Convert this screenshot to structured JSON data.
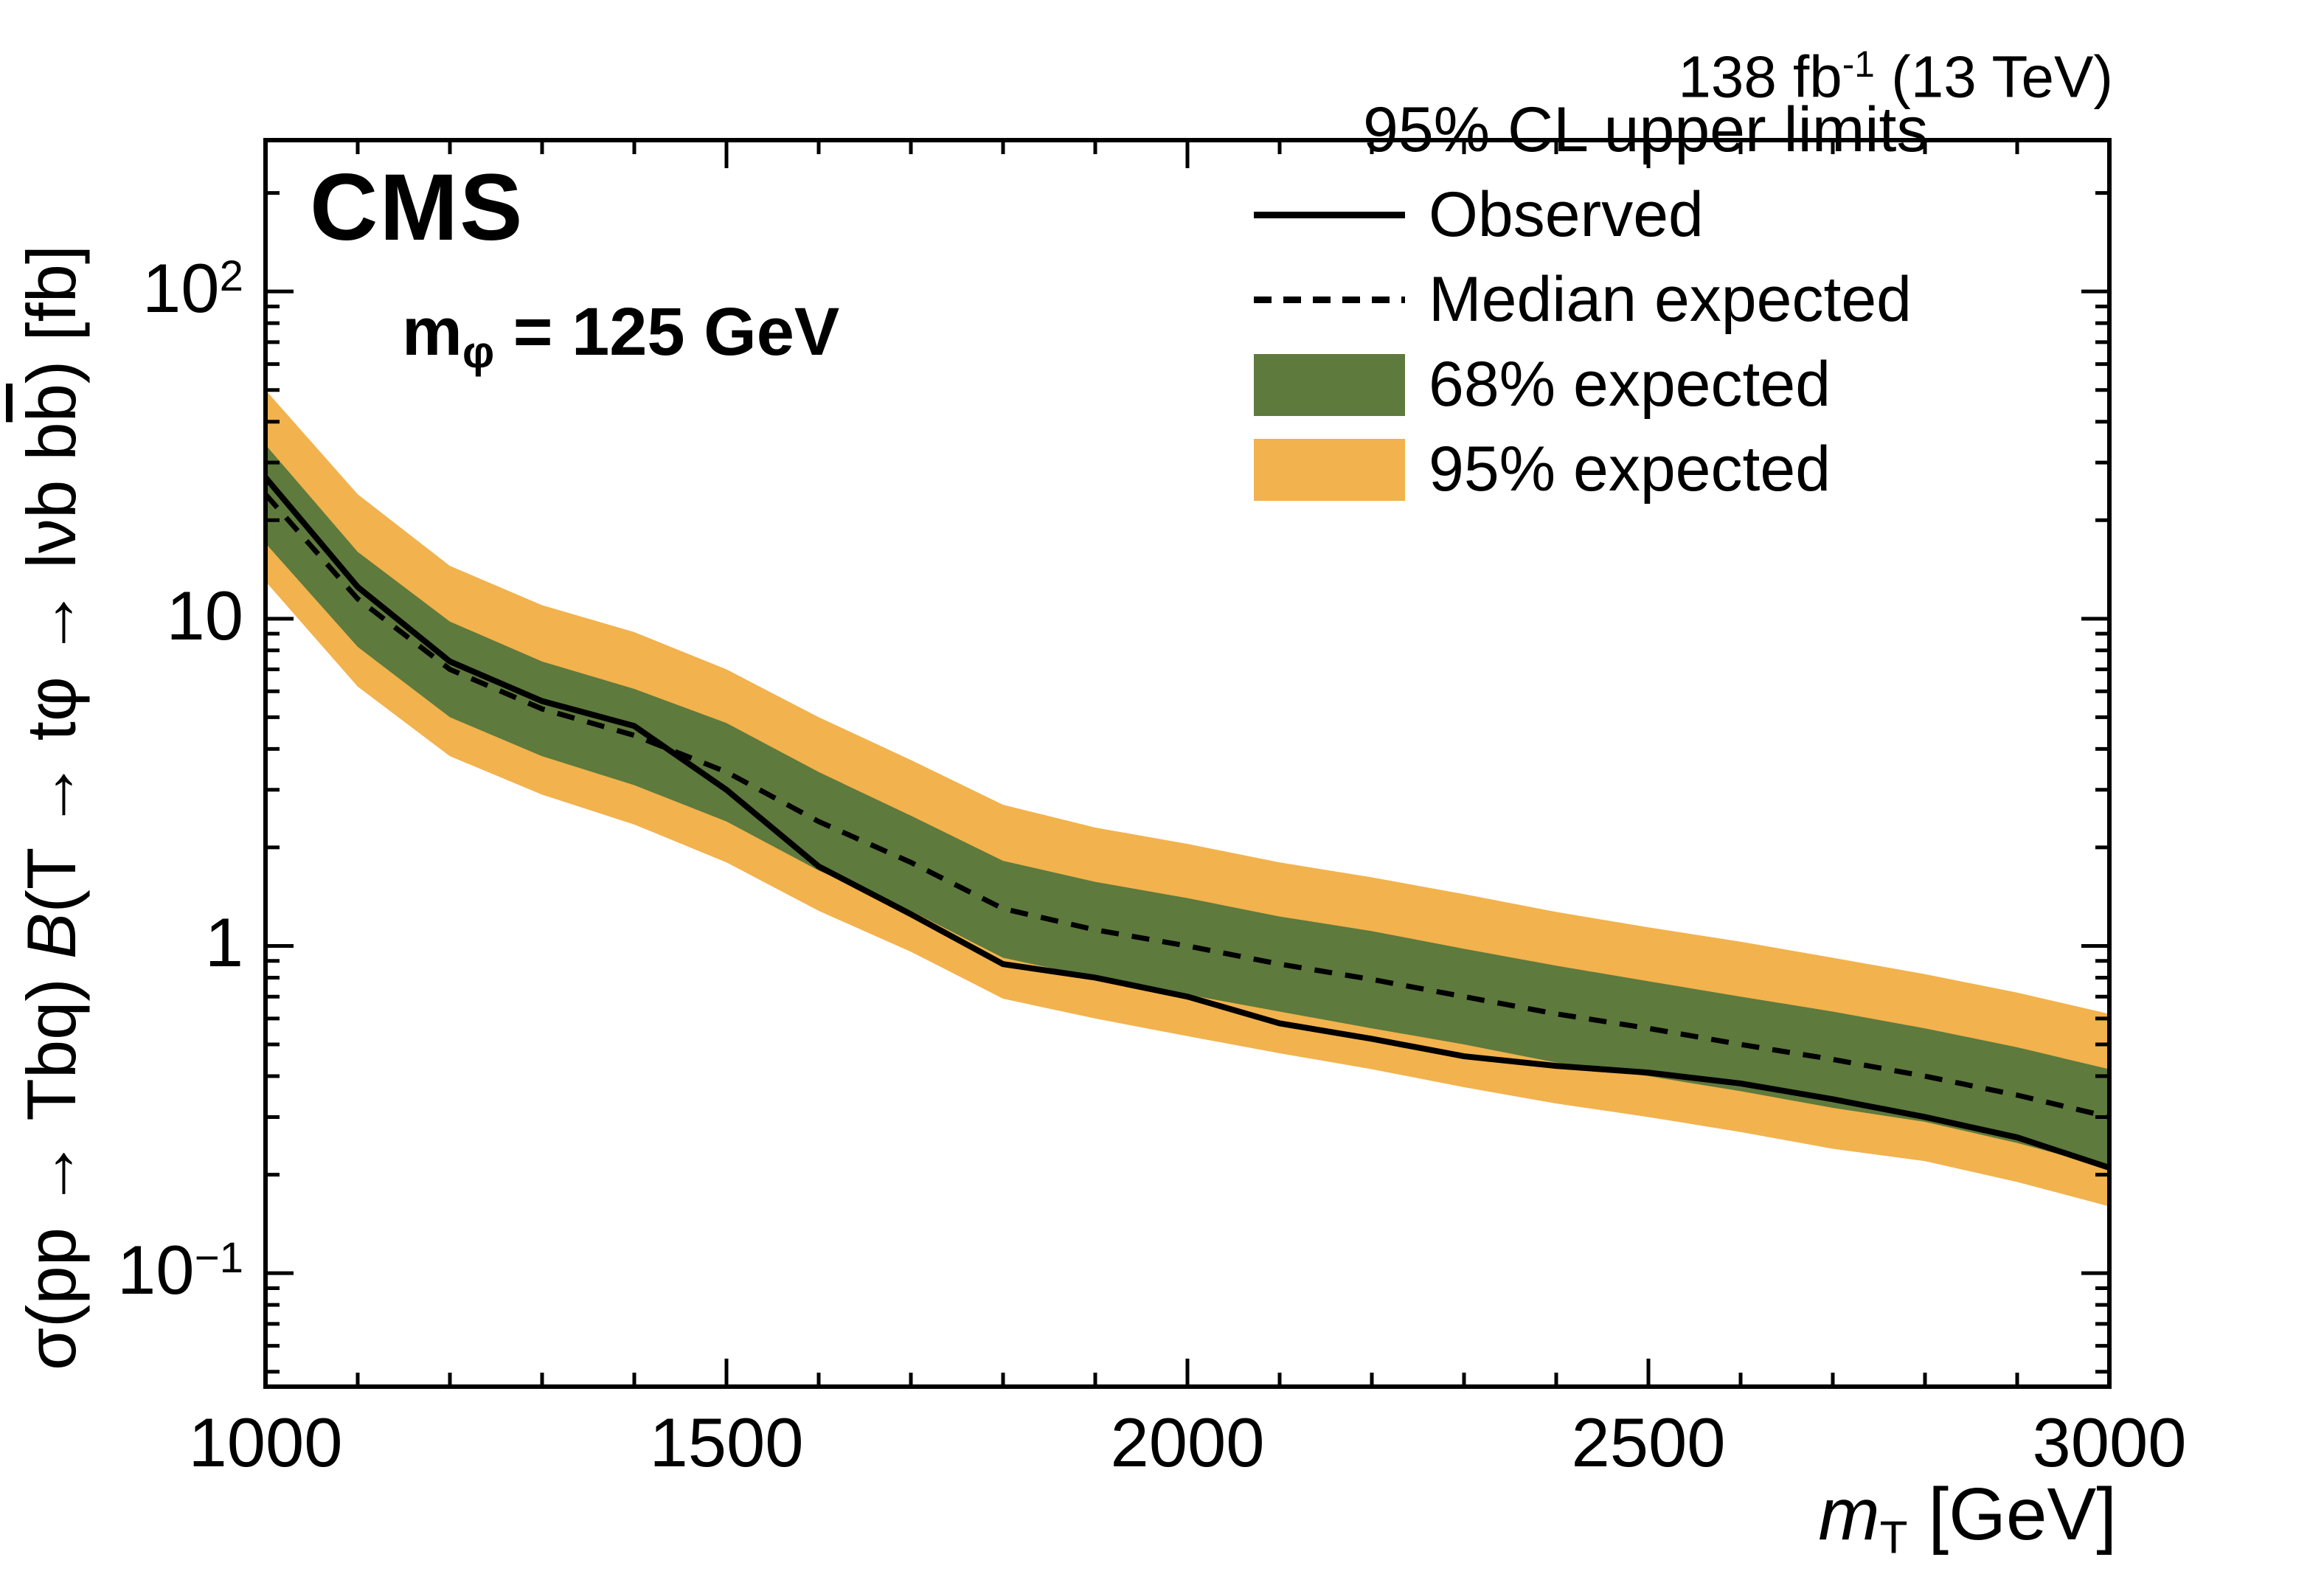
{
  "header": {
    "lumi": {
      "prefix": "138 fb",
      "sup": "-1",
      "suffix": " (13 TeV)"
    }
  },
  "plot": {
    "experiment": "CMS",
    "mass_label": {
      "main": "m",
      "sub": "φ",
      "rest": " = 125 GeV"
    }
  },
  "legend": {
    "title": "95% CL upper limits",
    "entries": [
      {
        "label": "Observed",
        "style": "solid-line"
      },
      {
        "label": "Median expected",
        "style": "dashed-line"
      },
      {
        "label": "68% expected",
        "style": "band-box"
      },
      {
        "label": "95% expected",
        "style": "band-box"
      }
    ]
  },
  "colors": {
    "band68": "#5e7a3d",
    "band95": "#f2b24d",
    "observed": "#000000",
    "median": "#000000",
    "frame": "#000000"
  },
  "axes": {
    "x": {
      "label_main": "m",
      "label_sub": "T",
      "label_units": " [GeV]",
      "min": 1000,
      "max": 3000,
      "ticks": [
        1000,
        1500,
        2000,
        2500,
        3000
      ],
      "minor_step": 100
    },
    "y": {
      "label_parts": {
        "p1": "σ(pp → Tbq) ",
        "B": "B",
        "p2": "(T → tφ → lνb b",
        "bbar": "b",
        "p3": ") [fb]"
      },
      "scale": "log",
      "min": 0.045,
      "max": 290,
      "tick_labels": [
        {
          "value": 100,
          "base": "10",
          "exp": "2"
        },
        {
          "value": 10,
          "base": "10",
          "exp": ""
        },
        {
          "value": 1,
          "base": "1",
          "exp": ""
        },
        {
          "value": 0.1,
          "base": "10",
          "exp": "−1"
        }
      ]
    }
  },
  "chart_data": {
    "type": "line",
    "title": "95% CL upper limits",
    "xlabel": "m_T [GeV]",
    "ylabel": "σ(pp → Tbq) B(T → tφ → lνb bb̄) [fb]",
    "xlim": [
      1000,
      3000
    ],
    "ylim": [
      0.045,
      290
    ],
    "yscale": "log",
    "grid": false,
    "legend_position": "top-right",
    "x": [
      1000,
      1100,
      1200,
      1300,
      1400,
      1500,
      1600,
      1700,
      1800,
      1900,
      2000,
      2100,
      2200,
      2300,
      2400,
      2500,
      2600,
      2700,
      2800,
      2900,
      3000
    ],
    "series": [
      {
        "name": "Observed",
        "style": "solid",
        "values": [
          27,
          12.5,
          7.4,
          5.6,
          4.7,
          3.0,
          1.75,
          1.25,
          0.88,
          0.8,
          0.7,
          0.58,
          0.52,
          0.46,
          0.43,
          0.41,
          0.38,
          0.34,
          0.3,
          0.26,
          0.21
        ]
      },
      {
        "name": "Median expected",
        "style": "dashed",
        "values": [
          24,
          11.5,
          7.0,
          5.3,
          4.4,
          3.4,
          2.4,
          1.8,
          1.3,
          1.12,
          1.0,
          0.88,
          0.79,
          0.7,
          0.62,
          0.56,
          0.5,
          0.45,
          0.4,
          0.35,
          0.3
        ]
      },
      {
        "name": "68% expected",
        "style": "band",
        "lo": [
          17,
          8.2,
          5.0,
          3.8,
          3.1,
          2.4,
          1.7,
          1.28,
          0.92,
          0.8,
          0.71,
          0.63,
          0.56,
          0.5,
          0.44,
          0.4,
          0.36,
          0.32,
          0.29,
          0.25,
          0.21
        ],
        "hi": [
          34,
          16,
          9.8,
          7.4,
          6.1,
          4.8,
          3.4,
          2.5,
          1.82,
          1.57,
          1.4,
          1.23,
          1.11,
          0.98,
          0.87,
          0.78,
          0.7,
          0.63,
          0.56,
          0.49,
          0.42
        ]
      },
      {
        "name": "95% expected",
        "style": "band",
        "lo": [
          13,
          6.2,
          3.8,
          2.9,
          2.35,
          1.8,
          1.28,
          0.96,
          0.69,
          0.6,
          0.53,
          0.47,
          0.42,
          0.37,
          0.33,
          0.3,
          0.27,
          0.24,
          0.22,
          0.19,
          0.16
        ],
        "hi": [
          50,
          24,
          14.5,
          11.0,
          9.1,
          7.0,
          5.0,
          3.7,
          2.7,
          2.3,
          2.05,
          1.8,
          1.62,
          1.44,
          1.27,
          1.14,
          1.03,
          0.92,
          0.82,
          0.72,
          0.62
        ]
      }
    ]
  }
}
